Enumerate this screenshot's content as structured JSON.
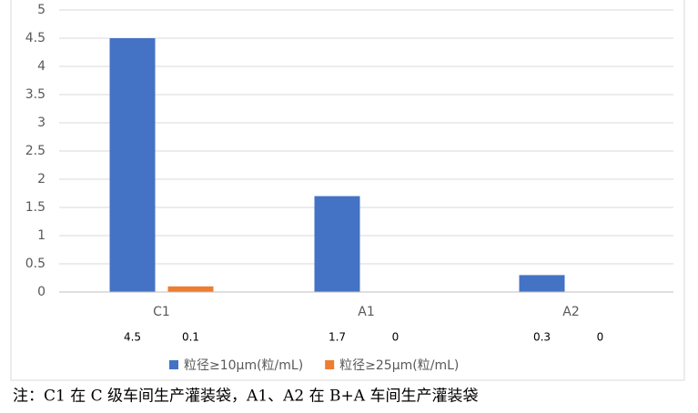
{
  "chart_data": {
    "type": "bar",
    "categories": [
      "C1",
      "A1",
      "A2"
    ],
    "series": [
      {
        "name": "粒径≥10μm(粒/mL)",
        "color": "#4472c4",
        "values": [
          4.5,
          1.7,
          0.3
        ]
      },
      {
        "name": "粒径≥25μm(粒/mL)",
        "color": "#ed7d31",
        "values": [
          0.1,
          0,
          0
        ]
      }
    ],
    "ylim": [
      0,
      5
    ],
    "yticks": [
      0,
      0.5,
      1,
      1.5,
      2,
      2.5,
      3,
      3.5,
      4,
      4.5,
      5
    ],
    "grid": true,
    "legend": "bottom"
  },
  "note": "注：C1 在 C 级车间生产灌装袋，A1、A2 在 B+A 车间生产灌装袋"
}
